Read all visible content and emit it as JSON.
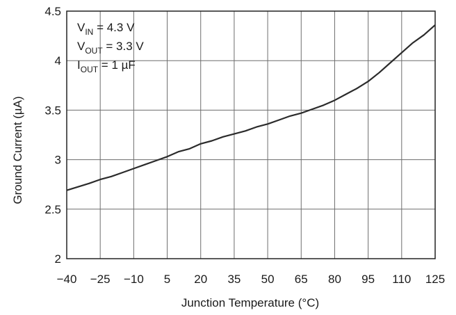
{
  "chart_data": {
    "type": "line",
    "title": "",
    "xlabel": "Junction Temperature (°C)",
    "ylabel": "Ground Current (µA)",
    "xlim": [
      -40,
      125
    ],
    "ylim": [
      2,
      4.5
    ],
    "xticks": [
      -40,
      -25,
      -10,
      5,
      20,
      35,
      50,
      65,
      80,
      95,
      110,
      125
    ],
    "yticks": [
      2,
      2.5,
      3,
      3.5,
      4,
      4.5
    ],
    "xtick_labels": [
      "−40",
      "−25",
      "−10",
      "5",
      "20",
      "35",
      "50",
      "65",
      "80",
      "95",
      "110",
      "125"
    ],
    "ytick_labels": [
      "2",
      "2.5",
      "3",
      "3.5",
      "4",
      "4.5"
    ],
    "grid": true,
    "line_color": "#2b2b2b",
    "annotations": [
      {
        "main": "V",
        "sub": "IN",
        "rest": " = 4.3 V"
      },
      {
        "main": "V",
        "sub": "OUT",
        "rest": " = 3.3 V"
      },
      {
        "main": "I",
        "sub": "OUT",
        "rest": " = 1 µF"
      }
    ],
    "series": [
      {
        "x": [
          -40,
          -30,
          -25,
          -20,
          -15,
          -10,
          -5,
          0,
          5,
          10,
          15,
          20,
          25,
          30,
          35,
          40,
          45,
          50,
          55,
          60,
          65,
          70,
          75,
          80,
          85,
          90,
          95,
          100,
          105,
          110,
          115,
          120,
          125
        ],
        "values": [
          2.69,
          2.76,
          2.8,
          2.83,
          2.87,
          2.91,
          2.95,
          2.99,
          3.03,
          3.08,
          3.11,
          3.16,
          3.19,
          3.23,
          3.26,
          3.29,
          3.33,
          3.36,
          3.4,
          3.44,
          3.47,
          3.51,
          3.55,
          3.6,
          3.66,
          3.72,
          3.79,
          3.88,
          3.98,
          4.08,
          4.18,
          4.26,
          4.36
        ]
      }
    ]
  }
}
